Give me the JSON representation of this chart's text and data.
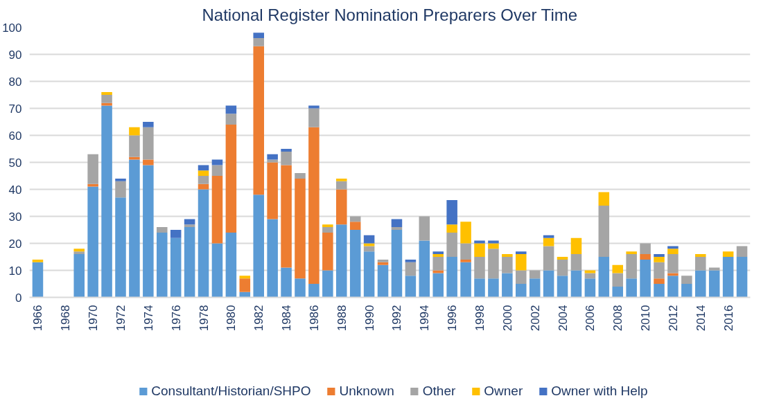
{
  "chart_data": {
    "type": "bar",
    "stacked": true,
    "title": "National Register Nomination Preparers Over Time",
    "categories": [
      "1966",
      null,
      "1968",
      null,
      "1970",
      null,
      "1972",
      null,
      "1974",
      null,
      "1976",
      null,
      "1978",
      null,
      "1980",
      null,
      "1982",
      null,
      "1984",
      null,
      "1986",
      null,
      "1988",
      null,
      "1990",
      null,
      "1992",
      null,
      "1994",
      null,
      "1996",
      null,
      "1998",
      null,
      "2000",
      null,
      "2002",
      null,
      "2004",
      null,
      "2006",
      null,
      "2008",
      null,
      "2010",
      null,
      "2012",
      null,
      "2014",
      null,
      "2016",
      null
    ],
    "series": [
      {
        "name": "Consultant/Historian/SHPO",
        "color": "#5b9bd5",
        "values": [
          13,
          0,
          0,
          16,
          41,
          71,
          37,
          51,
          49,
          24,
          22,
          26,
          40,
          20,
          24,
          2,
          38,
          29,
          11,
          7,
          5,
          10,
          27,
          25,
          17,
          12,
          25,
          8,
          21,
          9,
          15,
          13,
          7,
          7,
          9,
          5,
          7,
          10,
          8,
          10,
          7,
          15,
          4,
          7,
          14,
          5,
          8,
          5,
          10,
          10,
          15,
          15
        ]
      },
      {
        "name": "Unknown",
        "color": "#ed7d31",
        "values": [
          0,
          0,
          0,
          0,
          1,
          1,
          0,
          1,
          2,
          0,
          0,
          0,
          2,
          25,
          40,
          5,
          55,
          21,
          38,
          37,
          58,
          14,
          13,
          3,
          0,
          1,
          0,
          0,
          0,
          1,
          0,
          1,
          0,
          0,
          0,
          0,
          0,
          0,
          0,
          0,
          0,
          0,
          0,
          0,
          2,
          2,
          1,
          0,
          0,
          0,
          0,
          0
        ]
      },
      {
        "name": "Other",
        "color": "#a5a5a5",
        "values": [
          0,
          0,
          0,
          1,
          11,
          3,
          6,
          8,
          12,
          2,
          0,
          1,
          3,
          4,
          4,
          0,
          3,
          1,
          5,
          2,
          7,
          2,
          3,
          2,
          2,
          1,
          1,
          5,
          9,
          5,
          9,
          6,
          8,
          11,
          6,
          5,
          3,
          9,
          6,
          6,
          2,
          19,
          5,
          9,
          4,
          6,
          7,
          3,
          5,
          1,
          0,
          4
        ]
      },
      {
        "name": "Owner",
        "color": "#ffc000",
        "values": [
          1,
          0,
          0,
          1,
          0,
          1,
          0,
          3,
          0,
          0,
          0,
          0,
          2,
          0,
          0,
          1,
          0,
          0,
          0,
          0,
          0,
          1,
          1,
          0,
          1,
          0,
          0,
          0,
          0,
          1,
          3,
          8,
          5,
          2,
          1,
          6,
          0,
          3,
          1,
          6,
          1,
          5,
          3,
          1,
          0,
          2,
          2,
          0,
          1,
          0,
          2,
          0
        ]
      },
      {
        "name": "Owner with Help",
        "color": "#4472c4",
        "values": [
          0,
          0,
          0,
          0,
          0,
          0,
          1,
          0,
          2,
          0,
          3,
          2,
          2,
          2,
          3,
          0,
          2,
          2,
          1,
          0,
          1,
          0,
          0,
          0,
          3,
          0,
          3,
          1,
          0,
          1,
          9,
          0,
          1,
          1,
          0,
          1,
          0,
          1,
          0,
          0,
          0,
          0,
          0,
          0,
          0,
          1,
          1,
          0,
          0,
          0,
          0,
          0
        ]
      }
    ],
    "ylim": [
      0,
      100
    ],
    "yticks": [
      0,
      10,
      20,
      30,
      40,
      50,
      60,
      70,
      80,
      90,
      100
    ],
    "grid": "y",
    "legend": "bottom"
  }
}
